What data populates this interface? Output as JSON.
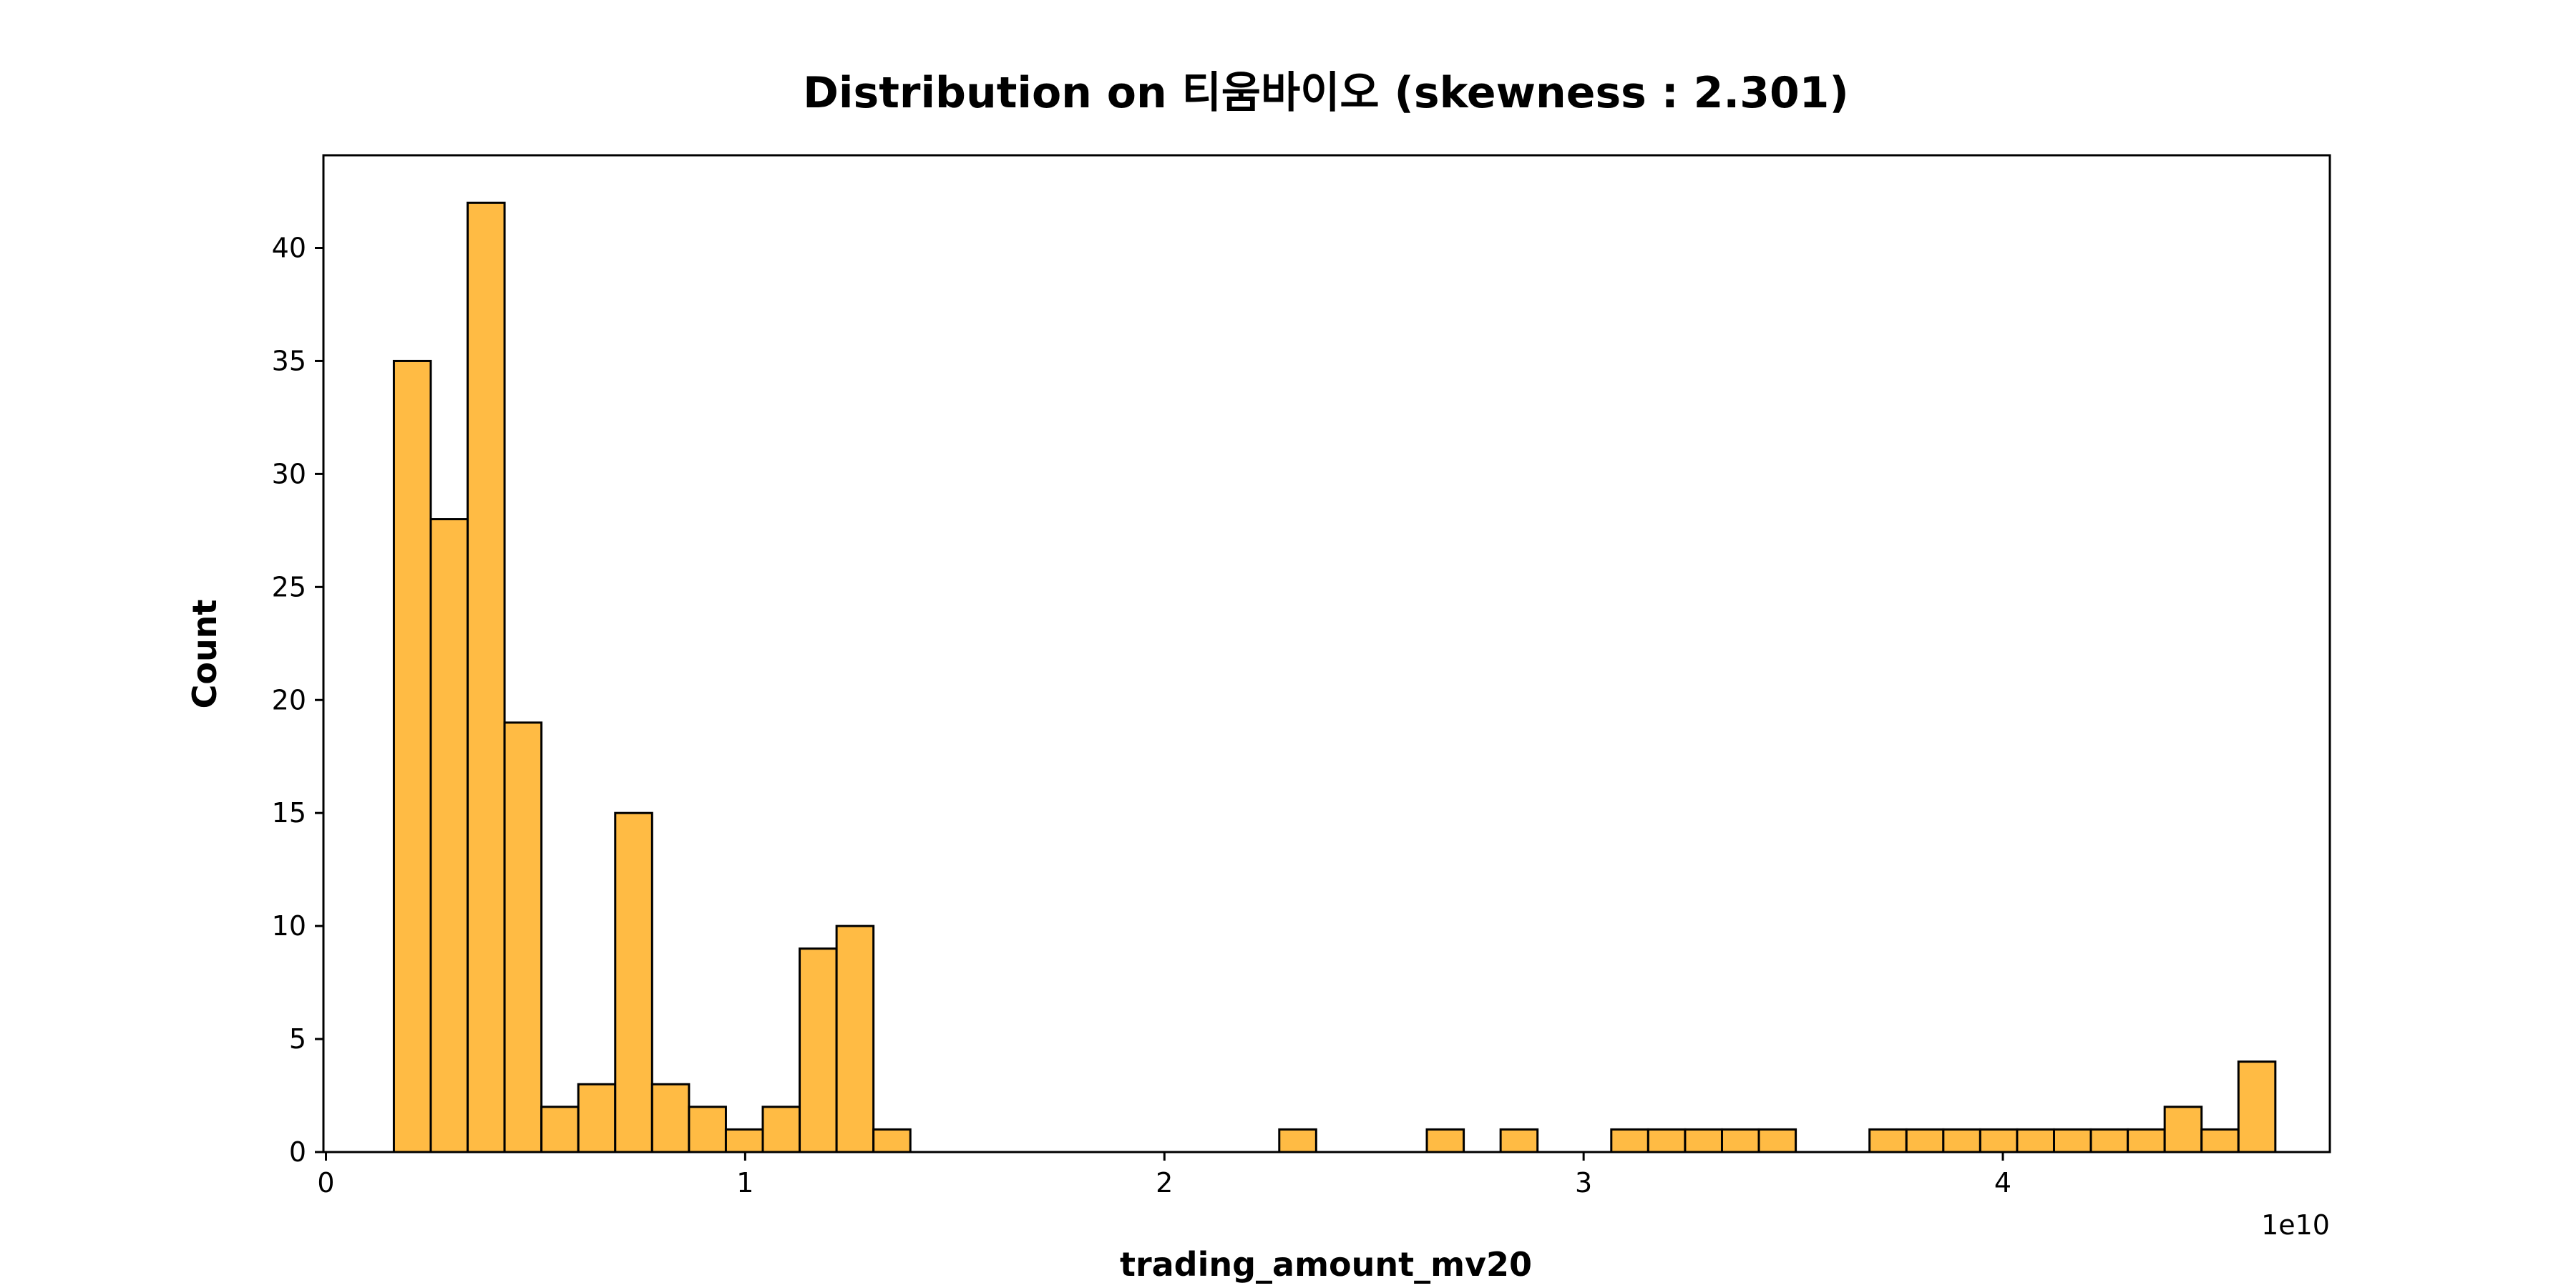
{
  "chart_data": {
    "type": "bar",
    "title": "Distribution on 티움바이오 (skewness : 2.301)",
    "xlabel": "trading_amount_mv20",
    "ylabel": "Count",
    "x_offset_label": "1e10",
    "x_scale": 10000000000,
    "xlim": [
      -60000000,
      47800000000
    ],
    "ylim": [
      0,
      44.1
    ],
    "xticks": [
      0,
      10000000000,
      20000000000,
      30000000000,
      40000000000
    ],
    "xtick_labels": [
      "0",
      "1",
      "2",
      "3",
      "4"
    ],
    "yticks": [
      0,
      5,
      10,
      15,
      20,
      25,
      30,
      35,
      40
    ],
    "ytick_labels": [
      "0",
      "5",
      "10",
      "15",
      "20",
      "25",
      "30",
      "35",
      "40"
    ],
    "grid": false,
    "bar_color": "#FFBB44",
    "edge_color": "#000000",
    "bin_start": 1620000000,
    "bin_width": 880000000,
    "counts": [
      35,
      28,
      42,
      19,
      2,
      3,
      15,
      3,
      2,
      1,
      2,
      9,
      10,
      1,
      0,
      0,
      0,
      0,
      0,
      0,
      0,
      0,
      0,
      0,
      1,
      0,
      0,
      0,
      1,
      0,
      1,
      0,
      0,
      1,
      1,
      1,
      1,
      1,
      0,
      0,
      1,
      1,
      1,
      1,
      1,
      1,
      1,
      1,
      2,
      1,
      4
    ]
  }
}
